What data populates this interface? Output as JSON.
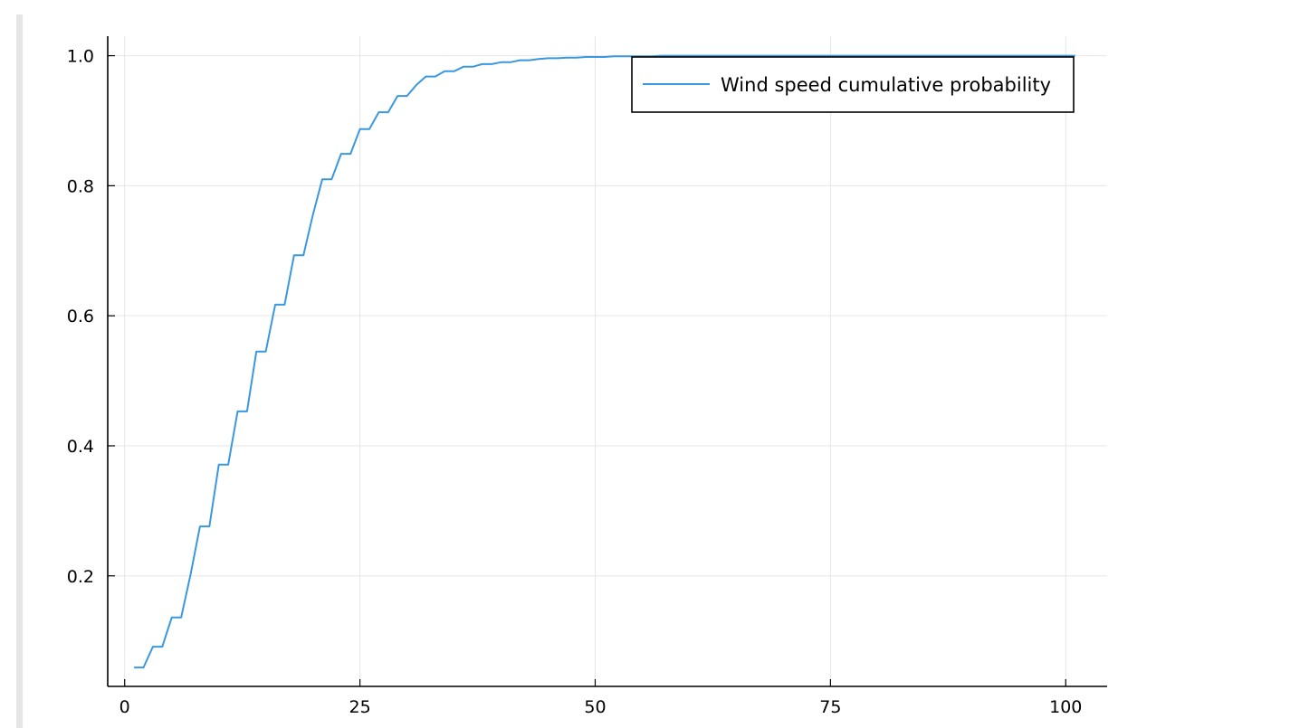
{
  "chart_data": {
    "type": "line",
    "title": "",
    "xlabel": "",
    "ylabel": "",
    "xlim": [
      -1.8,
      104.4
    ],
    "ylim": [
      0.03,
      1.03
    ],
    "xticks": [
      0,
      25,
      50,
      75,
      100
    ],
    "xtick_labels": [
      "0",
      "25",
      "50",
      "75",
      "100"
    ],
    "yticks": [
      0.2,
      0.4,
      0.6,
      0.8,
      1.0
    ],
    "ytick_labels": [
      "0.2",
      "0.4",
      "0.6",
      "0.8",
      "1.0"
    ],
    "grid": true,
    "legend_position": "top-right",
    "series": [
      {
        "name": "Wind speed cumulative probability",
        "color": "#3a98e0",
        "x": [
          1,
          2,
          3,
          4,
          5,
          6,
          7,
          8,
          9,
          10,
          11,
          12,
          13,
          14,
          15,
          16,
          17,
          18,
          19,
          20,
          21,
          22,
          23,
          24,
          25,
          26,
          27,
          28,
          29,
          30,
          31,
          32,
          33,
          34,
          35,
          36,
          37,
          38,
          39,
          40,
          41,
          42,
          43,
          44,
          45,
          46,
          47,
          48,
          49,
          50,
          51,
          52,
          53,
          54,
          55,
          56,
          57,
          58,
          59,
          60,
          61,
          62,
          63,
          64,
          65,
          66,
          67,
          68,
          69,
          70,
          71,
          72,
          73,
          74,
          75,
          76,
          77,
          78,
          79,
          80,
          81,
          82,
          83,
          84,
          85,
          86,
          87,
          88,
          89,
          90,
          91,
          92,
          93,
          94,
          95,
          96,
          97,
          98,
          99,
          100,
          101
        ],
        "y": [
          0.059,
          0.059,
          0.091,
          0.091,
          0.136,
          0.136,
          0.202,
          0.276,
          0.276,
          0.371,
          0.371,
          0.453,
          0.453,
          0.545,
          0.545,
          0.617,
          0.617,
          0.693,
          0.693,
          0.755,
          0.81,
          0.81,
          0.849,
          0.849,
          0.887,
          0.887,
          0.913,
          0.913,
          0.938,
          0.938,
          0.955,
          0.968,
          0.968,
          0.976,
          0.976,
          0.983,
          0.983,
          0.987,
          0.987,
          0.99,
          0.99,
          0.993,
          0.993,
          0.995,
          0.996,
          0.996,
          0.997,
          0.997,
          0.998,
          0.998,
          0.998,
          0.999,
          0.999,
          0.999,
          0.999,
          0.999,
          1.0,
          1.0,
          1.0,
          1.0,
          1.0,
          1.0,
          1.0,
          1.0,
          1.0,
          1.0,
          1.0,
          1.0,
          1.0,
          1.0,
          1.0,
          1.0,
          1.0,
          1.0,
          1.0,
          1.0,
          1.0,
          1.0,
          1.0,
          1.0,
          1.0,
          1.0,
          1.0,
          1.0,
          1.0,
          1.0,
          1.0,
          1.0,
          1.0,
          1.0,
          1.0,
          1.0,
          1.0,
          1.0,
          1.0,
          1.0,
          1.0,
          1.0,
          1.0,
          1.0,
          1.0
        ]
      }
    ]
  }
}
